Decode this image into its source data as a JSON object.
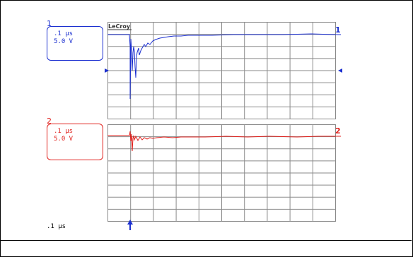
{
  "brand": {
    "name": "LeCroy"
  },
  "colors": {
    "ch1": "#1b2fd0",
    "ch2": "#e0201c",
    "grid": "#8a8a8a",
    "frame": "#000000"
  },
  "channels": [
    {
      "number": "1",
      "timebase": ".1 µs",
      "volts_per_div": "5.0 V",
      "color": "#1b2fd0"
    },
    {
      "number": "2",
      "timebase": ".1 µs",
      "volts_per_div": "5.0 V",
      "color": "#e0201c"
    }
  ],
  "footer": {
    "timebase": ".1 µs"
  },
  "grid": {
    "columns": 10,
    "rows_per_channel": 8
  },
  "markers": {
    "trigger": "trigger-arrow",
    "level_left": "level-arrow-left",
    "level_right": "level-arrow-right"
  }
}
